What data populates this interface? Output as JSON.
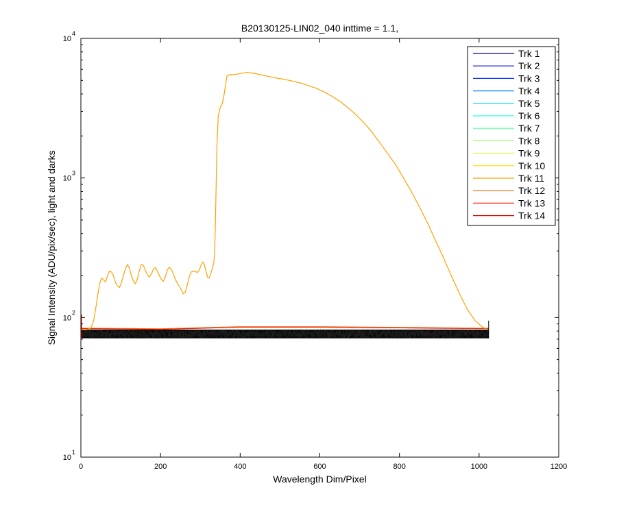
{
  "chart_data": {
    "type": "line",
    "title": "B20130125-LIN02_040 inttime = 1.1,",
    "xlabel": "Wavelength Dim/Pixel",
    "ylabel": "Signal Intensity (ADU/pix/sec), light and darks",
    "xlim": [
      0,
      1200
    ],
    "ylim": [
      10,
      10000
    ],
    "yscale": "log",
    "grid": false,
    "legend_position": "top-right",
    "x_ticks": [
      "0",
      "200",
      "400",
      "600",
      "800",
      "1000",
      "1200"
    ],
    "y_ticks": [
      {
        "base": "10",
        "exp": "1"
      },
      {
        "base": "10",
        "exp": "2"
      },
      {
        "base": "10",
        "exp": "3"
      },
      {
        "base": "10",
        "exp": "4"
      }
    ],
    "series": [
      {
        "name": "Trk 1",
        "color": "#00008f"
      },
      {
        "name": "Trk 2",
        "color": "#0000df"
      },
      {
        "name": "Trk 3",
        "color": "#0030ff"
      },
      {
        "name": "Trk 4",
        "color": "#0080ff"
      },
      {
        "name": "Trk 5",
        "color": "#00cfff"
      },
      {
        "name": "Trk 6",
        "color": "#20ffdf"
      },
      {
        "name": "Trk 7",
        "color": "#60ff9f"
      },
      {
        "name": "Trk 8",
        "color": "#a0ff60"
      },
      {
        "name": "Trk 9",
        "color": "#dfff20"
      },
      {
        "name": "Trk 10",
        "color": "#ffdf00"
      },
      {
        "name": "Trk 11",
        "color": "#ff9f00",
        "points": [
          [
            0,
            82
          ],
          [
            15,
            82
          ],
          [
            25,
            84
          ],
          [
            32,
            95
          ],
          [
            38,
            120
          ],
          [
            43,
            150
          ],
          [
            48,
            178
          ],
          [
            52,
            192
          ],
          [
            57,
            186
          ],
          [
            62,
            180
          ],
          [
            67,
            200
          ],
          [
            72,
            215
          ],
          [
            77,
            212
          ],
          [
            82,
            198
          ],
          [
            87,
            178
          ],
          [
            92,
            168
          ],
          [
            97,
            164
          ],
          [
            102,
            178
          ],
          [
            107,
            200
          ],
          [
            112,
            225
          ],
          [
            117,
            240
          ],
          [
            122,
            225
          ],
          [
            127,
            198
          ],
          [
            132,
            182
          ],
          [
            137,
            175
          ],
          [
            142,
            190
          ],
          [
            147,
            218
          ],
          [
            152,
            240
          ],
          [
            157,
            236
          ],
          [
            162,
            218
          ],
          [
            167,
            202
          ],
          [
            172,
            195
          ],
          [
            177,
            205
          ],
          [
            182,
            222
          ],
          [
            187,
            228
          ],
          [
            192,
            215
          ],
          [
            197,
            200
          ],
          [
            202,
            188
          ],
          [
            207,
            182
          ],
          [
            212,
            195
          ],
          [
            217,
            218
          ],
          [
            222,
            230
          ],
          [
            227,
            222
          ],
          [
            232,
            205
          ],
          [
            237,
            188
          ],
          [
            242,
            176
          ],
          [
            247,
            168
          ],
          [
            252,
            158
          ],
          [
            257,
            148
          ],
          [
            262,
            152
          ],
          [
            267,
            170
          ],
          [
            272,
            195
          ],
          [
            277,
            212
          ],
          [
            282,
            215
          ],
          [
            287,
            214
          ],
          [
            292,
            210
          ],
          [
            297,
            218
          ],
          [
            302,
            238
          ],
          [
            306,
            250
          ],
          [
            310,
            240
          ],
          [
            314,
            215
          ],
          [
            318,
            195
          ],
          [
            322,
            192
          ],
          [
            326,
            205
          ],
          [
            330,
            225
          ],
          [
            334,
            248
          ],
          [
            336,
            300
          ],
          [
            338,
            500
          ],
          [
            340,
            1000
          ],
          [
            342,
            1800
          ],
          [
            345,
            2800
          ],
          [
            350,
            3200
          ],
          [
            355,
            3400
          ],
          [
            360,
            4000
          ],
          [
            363,
            4600
          ],
          [
            367,
            5400
          ],
          [
            375,
            5500
          ],
          [
            385,
            5500
          ],
          [
            400,
            5600
          ],
          [
            415,
            5700
          ],
          [
            430,
            5650
          ],
          [
            450,
            5500
          ],
          [
            470,
            5350
          ],
          [
            490,
            5200
          ],
          [
            510,
            5100
          ],
          [
            530,
            4950
          ],
          [
            550,
            4800
          ],
          [
            570,
            4600
          ],
          [
            590,
            4400
          ],
          [
            610,
            4150
          ],
          [
            630,
            3850
          ],
          [
            650,
            3550
          ],
          [
            670,
            3200
          ],
          [
            690,
            2850
          ],
          [
            710,
            2500
          ],
          [
            730,
            2150
          ],
          [
            750,
            1800
          ],
          [
            770,
            1500
          ],
          [
            790,
            1250
          ],
          [
            810,
            1000
          ],
          [
            830,
            800
          ],
          [
            850,
            620
          ],
          [
            870,
            480
          ],
          [
            890,
            360
          ],
          [
            910,
            270
          ],
          [
            930,
            200
          ],
          [
            950,
            150
          ],
          [
            970,
            115
          ],
          [
            990,
            95
          ],
          [
            1010,
            85
          ],
          [
            1020,
            82
          ]
        ]
      },
      {
        "name": "Trk 12",
        "color": "#ff6000"
      },
      {
        "name": "Trk 13",
        "color": "#ff2000"
      },
      {
        "name": "Trk 14",
        "color": "#df0000"
      }
    ],
    "dark_band": {
      "x_start": 0,
      "x_end": 1024,
      "y_low": 71,
      "y_high": 82,
      "y_top_orange": [
        [
          0,
          84
        ],
        [
          200,
          83
        ],
        [
          400,
          86
        ],
        [
          600,
          86
        ],
        [
          800,
          85
        ],
        [
          1000,
          84
        ],
        [
          1024,
          84
        ]
      ]
    }
  }
}
